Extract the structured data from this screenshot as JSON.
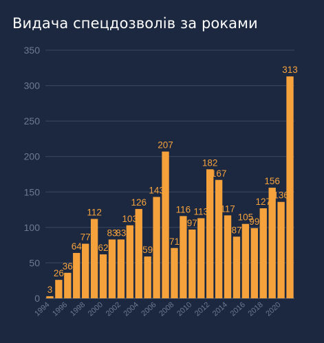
{
  "chart_data": {
    "type": "bar",
    "title": "Видача спецдозволів за роками",
    "xlabel": "",
    "ylabel": "",
    "categories": [
      "1994",
      "1995",
      "1996",
      "1997",
      "1998",
      "1999",
      "2000",
      "2001",
      "2002",
      "2003",
      "2004",
      "2005",
      "2006",
      "2007",
      "2008",
      "2009",
      "2010",
      "2011",
      "2012",
      "2013",
      "2014",
      "2015",
      "2016",
      "2017",
      "2018",
      "2019",
      "2020",
      "2021"
    ],
    "x_tick_labels": [
      "1994",
      "1996",
      "1998",
      "2000",
      "2002",
      "2004",
      "2006",
      "2008",
      "2010",
      "2012",
      "2014",
      "2016",
      "2018",
      "2020"
    ],
    "values": [
      3,
      26,
      36,
      64,
      77,
      112,
      62,
      83,
      83,
      103,
      126,
      59,
      143,
      207,
      71,
      116,
      97,
      113,
      182,
      167,
      117,
      87,
      105,
      99,
      127,
      156,
      136,
      313
    ],
    "data_labels": [
      "3",
      "26",
      "36",
      "64",
      "77",
      "112",
      "62",
      "83",
      "83",
      "103",
      "126",
      "59",
      "143",
      "207",
      "71",
      "116",
      "97",
      "113",
      "182",
      "167",
      "117",
      "87",
      "105",
      "99",
      "127",
      "156",
      "136",
      "313"
    ],
    "ylim": [
      0,
      350
    ],
    "y_ticks": [
      0,
      50,
      100,
      150,
      200,
      250,
      300,
      350
    ],
    "grid": true,
    "legend": "none",
    "colors": {
      "bar": "#f6a23c",
      "background": "#1b2840",
      "grid": "#3c4860",
      "tick_text": "#6d7a90",
      "title": "#ffffff"
    }
  }
}
